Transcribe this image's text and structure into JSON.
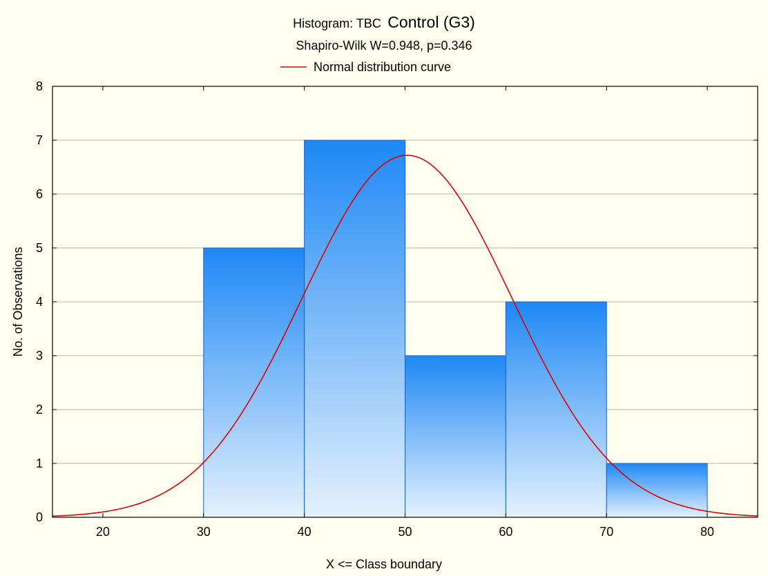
{
  "chart_data": {
    "type": "bar",
    "title_prefix": "Histogram: TBC",
    "title_main": "Control (G3)",
    "subtitle": "Shapiro-Wilk W=0.948, p=0.346",
    "legend": {
      "label": "Normal distribution curve",
      "color": "#e00000",
      "placement": "top-center"
    },
    "xlabel": "X <= Class boundary",
    "ylabel": "No. of Observations",
    "xlim": [
      15,
      85
    ],
    "ylim": [
      0,
      8
    ],
    "x_ticks": [
      "20",
      "30",
      "40",
      "50",
      "60",
      "70",
      "80"
    ],
    "y_ticks": [
      "0",
      "1",
      "2",
      "3",
      "4",
      "5",
      "6",
      "7",
      "8"
    ],
    "bins": [
      {
        "from": 30,
        "to": 40,
        "count": 5
      },
      {
        "from": 40,
        "to": 50,
        "count": 7
      },
      {
        "from": 50,
        "to": 60,
        "count": 3
      },
      {
        "from": 60,
        "to": 70,
        "count": 4
      },
      {
        "from": 70,
        "to": 80,
        "count": 1
      }
    ],
    "normal_curve": {
      "mean": 50.2,
      "sd": 10.4,
      "peak": 6.72
    },
    "grid": true,
    "colors": {
      "bar_top": "#1e88f5",
      "bar_bottom": "#e4f1fd",
      "bar_edge": "#1a5fc4",
      "curve": "#e00000",
      "background": "#fffff0",
      "grid": "#b0b0b0"
    }
  }
}
